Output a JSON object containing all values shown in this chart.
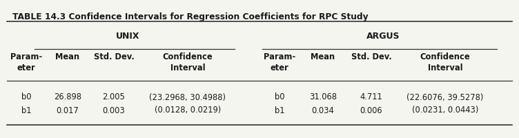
{
  "title": "TABLE 14.3 Confidence Intervals for Regression Coefficients for RPC Study",
  "unix_label": "UNIX",
  "argus_label": "ARGUS",
  "col_headers": [
    "Param-\neter",
    "Mean",
    "Std. Dev.",
    "Confidence\nInterval"
  ],
  "unix_data": [
    [
      "b0",
      "26.898",
      "2.005",
      "(23.2968, 30.4988)"
    ],
    [
      "b1",
      "0.017",
      "0.003",
      "(0.0128, 0.0219)"
    ]
  ],
  "argus_data": [
    [
      "b0",
      "31.068",
      "4.711",
      "(22.6076, 39.5278)"
    ],
    [
      "b1",
      "0.034",
      "0.006",
      "(0.0231, 0.0443)"
    ]
  ],
  "bg_color": "#f5f5f0",
  "text_color": "#1a1a1a",
  "line_color": "#333333"
}
